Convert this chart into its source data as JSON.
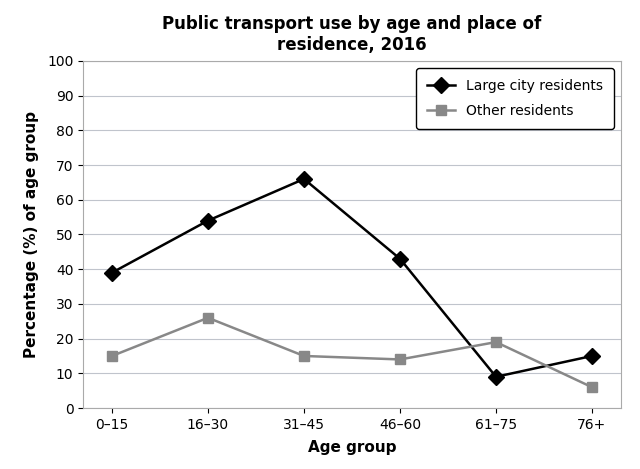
{
  "title": "Public transport use by age and place of\nresidence, 2016",
  "xlabel": "Age group",
  "ylabel": "Percentage (%) of age group",
  "age_groups": [
    "0–15",
    "16–30",
    "31–45",
    "46–60",
    "61–75",
    "76+"
  ],
  "large_city": [
    39,
    54,
    66,
    43,
    9,
    15
  ],
  "other_residents": [
    15,
    26,
    15,
    14,
    19,
    6
  ],
  "large_city_color": "#000000",
  "other_residents_color": "#888888",
  "ylim": [
    0,
    100
  ],
  "yticks": [
    0,
    10,
    20,
    30,
    40,
    50,
    60,
    70,
    80,
    90,
    100
  ],
  "legend_large_city": "Large city residents",
  "legend_other": "Other residents",
  "title_fontsize": 12,
  "axis_label_fontsize": 11,
  "tick_fontsize": 10,
  "legend_fontsize": 10,
  "background_color": "#ffffff",
  "spine_color": "#aaaaaa",
  "grid_color": "#c0c4cc"
}
